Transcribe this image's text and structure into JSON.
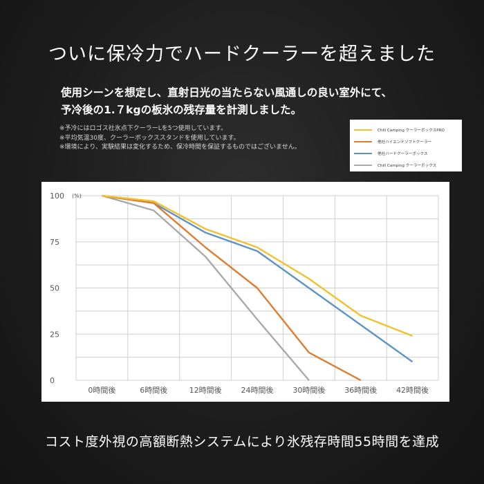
{
  "headline": "ついに保冷力でハードクーラーを超えました",
  "lead": {
    "line1": "使用シーンを想定し、直射日光の当たらない風通しの良い室外にて、",
    "line2": "予冷後の1.７kgの板氷の残存量を計測しました。"
  },
  "notes": [
    "※予冷にはロゴス社氷点下クーラーLを5つ使用しています。",
    "※平均気温30度、クーラーボックススタンドを使用しています。",
    "※環境により、実験結果は変化するため、保冷時間を保証するものではございません。"
  ],
  "footer": "コスト度外視の高額断熱システムにより氷残存時間55時間を達成",
  "chart_data": {
    "type": "line",
    "ylabel": "(%)",
    "ylim": [
      0,
      100
    ],
    "yticks": [
      0,
      25,
      50,
      75,
      100
    ],
    "categories": [
      "0時間後",
      "6時間後",
      "12時間後",
      "24時間後",
      "30時間後",
      "36時間後",
      "42時間後"
    ],
    "grid": true,
    "legend_position": "top-right",
    "series": [
      {
        "name": "Chill Camping クーラーボックスPRO",
        "color": "#F2C12E",
        "values": [
          100,
          97,
          82,
          72,
          55,
          35,
          24
        ]
      },
      {
        "name": "他社ハイエンドソフトクーラー",
        "color": "#E07B2E",
        "values": [
          100,
          96,
          72,
          50,
          15,
          0,
          null
        ]
      },
      {
        "name": "他社ハードクーラーボックス",
        "color": "#5B93C7",
        "values": [
          100,
          96,
          80,
          70,
          50,
          30,
          10
        ]
      },
      {
        "name": "Chill Camping クーラーボックス",
        "color": "#A9A9A9",
        "values": [
          100,
          92,
          67,
          33,
          0,
          null,
          null
        ]
      }
    ]
  }
}
